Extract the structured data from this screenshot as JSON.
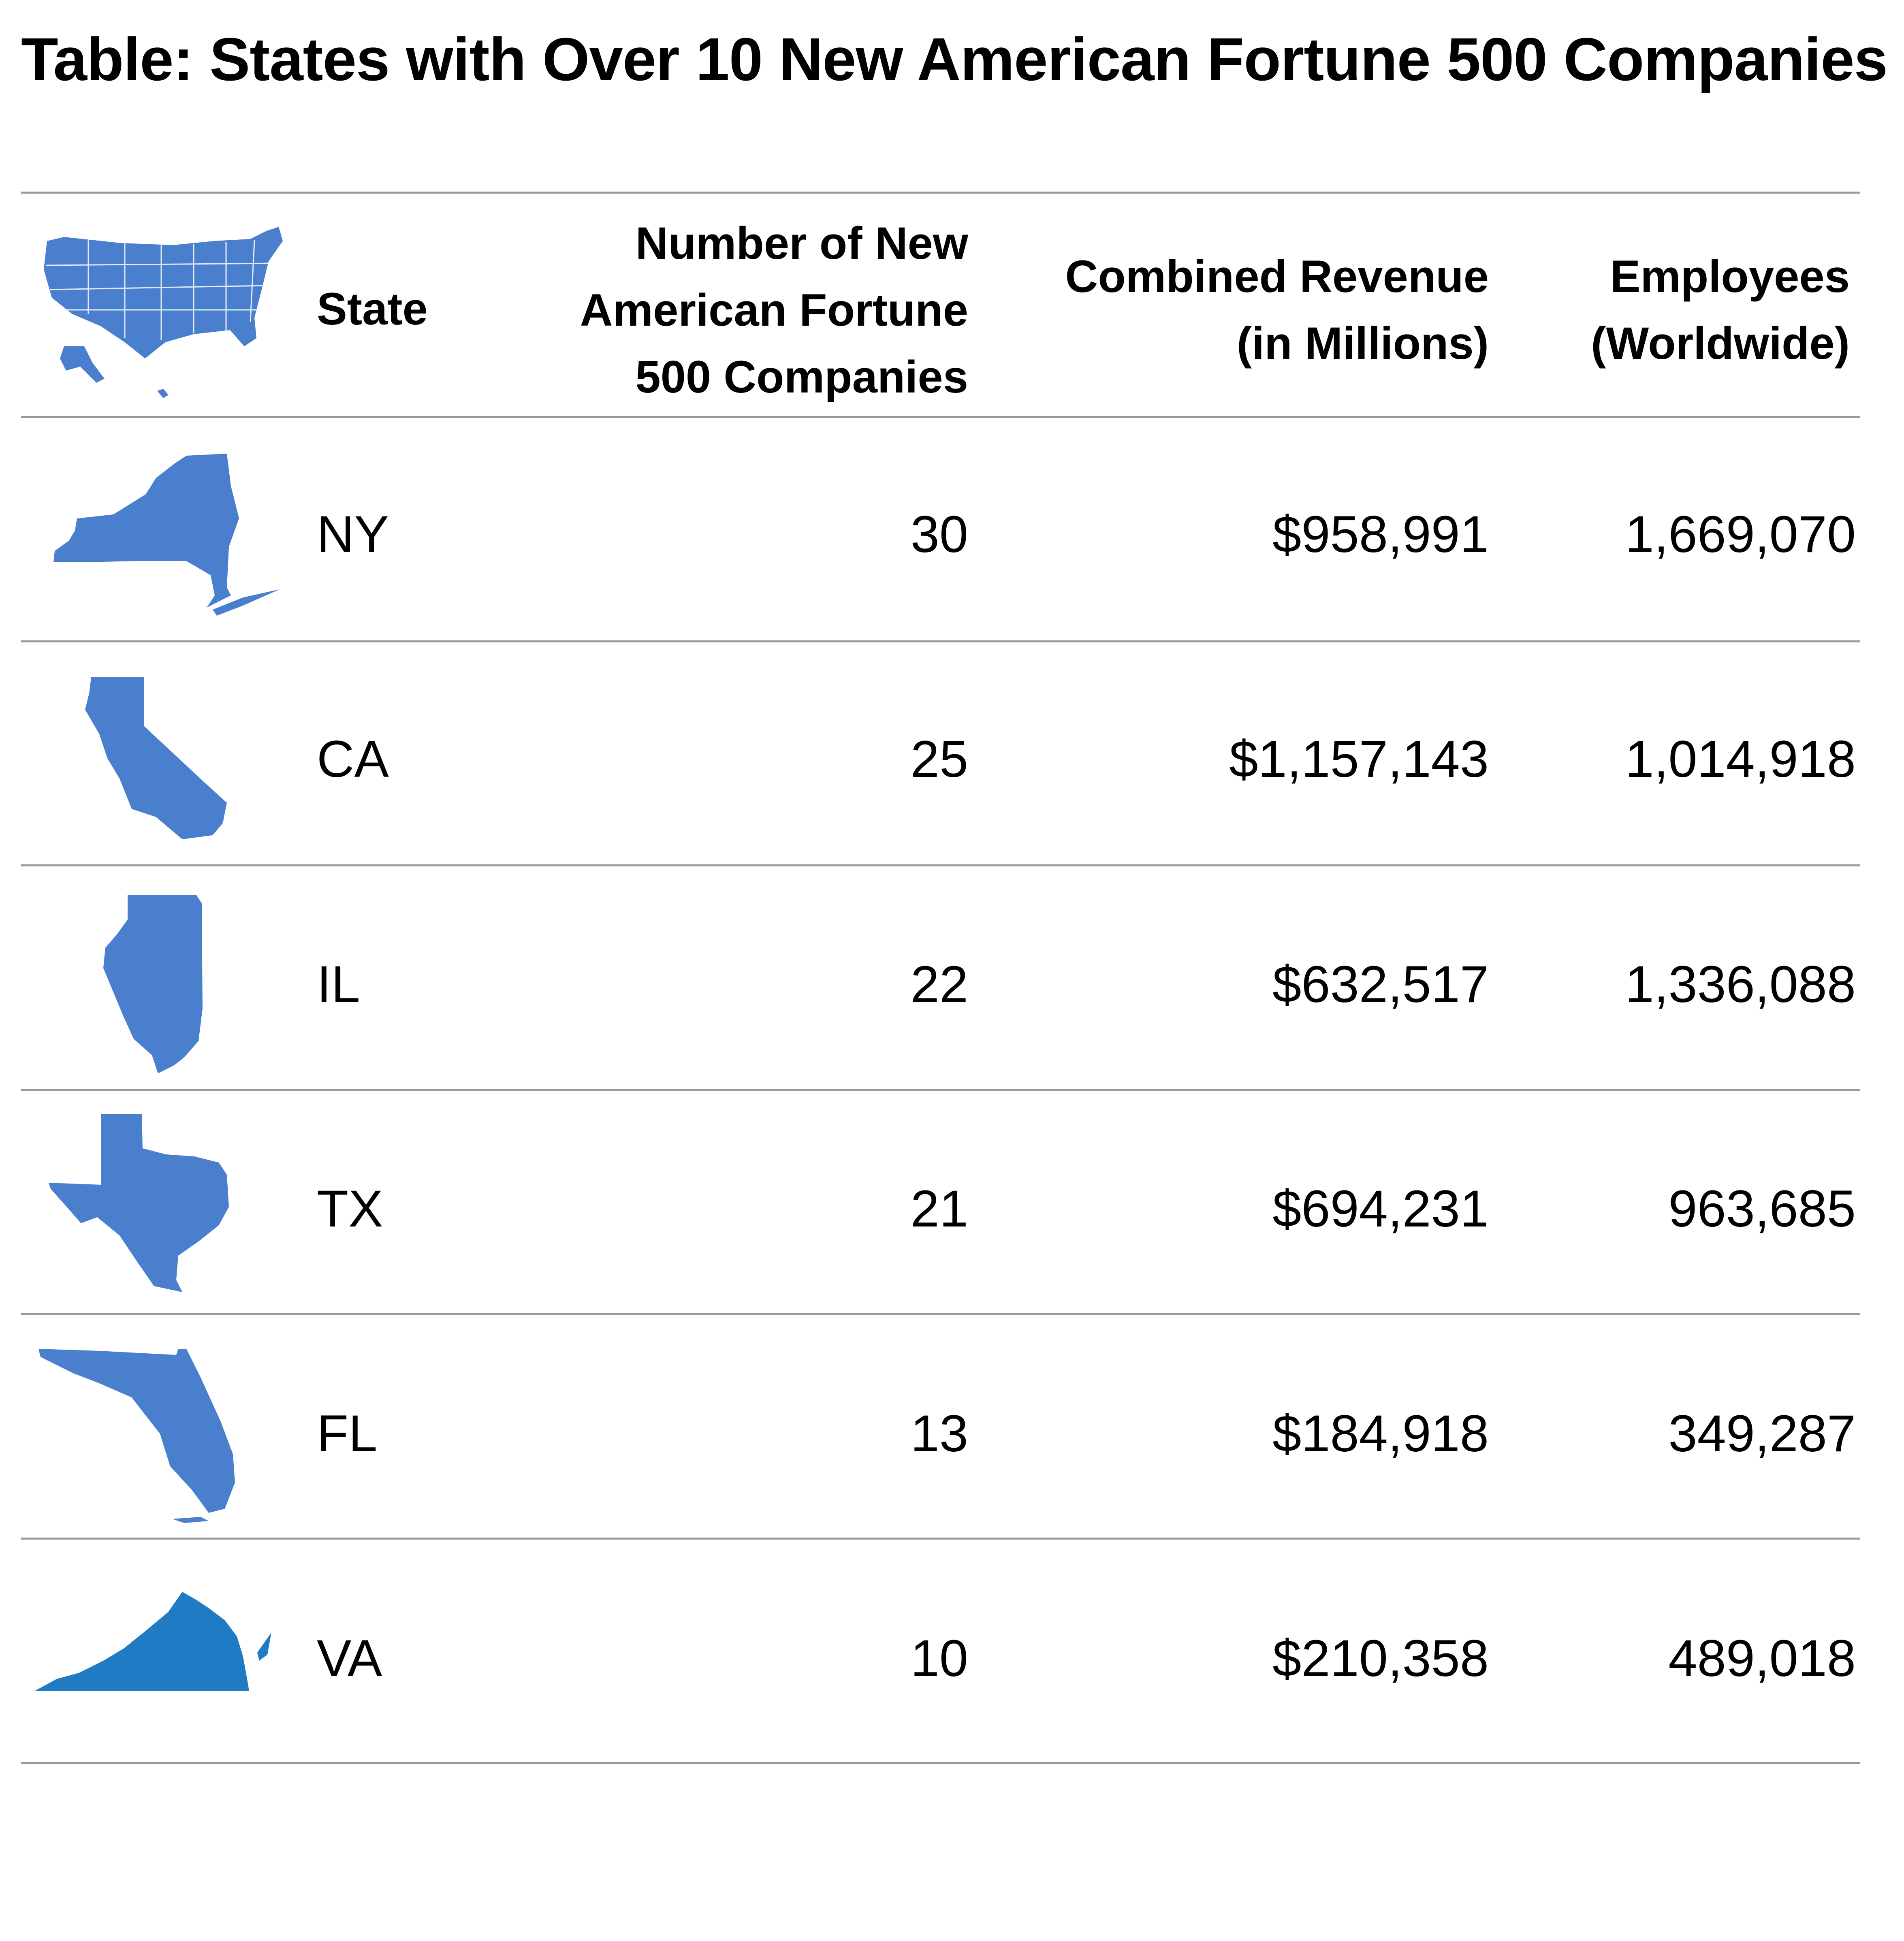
{
  "title": "Table: States with Over 10 New American Fortune 500 Companies",
  "map_color": "#4a7fce",
  "highlight_color": "#1f7bc4",
  "header": {
    "state": "State",
    "count_line1": "Number of New",
    "count_line2": "American  Fortune",
    "count_line3": "500 Companies",
    "revenue_line1": "Combined Revenue",
    "revenue_line2": "(in Millions)",
    "employees_line1": "Employees",
    "employees_line2": "(Worldwide)"
  },
  "rows": [
    {
      "state": "NY",
      "count": "30",
      "revenue": "$958,991",
      "employees": "1,669,070",
      "icon": "new-york-map-icon"
    },
    {
      "state": "CA",
      "count": "25",
      "revenue": "$1,157,143",
      "employees": "1,014,918",
      "icon": "california-map-icon"
    },
    {
      "state": "IL",
      "count": "22",
      "revenue": "$632,517",
      "employees": "1,336,088",
      "icon": "illinois-map-icon"
    },
    {
      "state": "TX",
      "count": "21",
      "revenue": "$694,231",
      "employees": "963,685",
      "icon": "texas-map-icon"
    },
    {
      "state": "FL",
      "count": "13",
      "revenue": "$184,918",
      "employees": "349,287",
      "icon": "florida-map-icon"
    },
    {
      "state": "VA",
      "count": "10",
      "revenue": "$210,358",
      "employees": "489,018",
      "icon": "virginia-map-icon"
    }
  ],
  "chart_data": {
    "type": "table",
    "title": "Table: States with Over 10 New American Fortune 500 Companies",
    "columns": [
      "State",
      "Number of New American  Fortune 500 Companies",
      "Combined Revenue (in Millions)",
      "Employees (Worldwide)"
    ],
    "rows": [
      [
        "NY",
        30,
        958991,
        1669070
      ],
      [
        "CA",
        25,
        1157143,
        1014918
      ],
      [
        "IL",
        22,
        632517,
        1336088
      ],
      [
        "TX",
        21,
        694231,
        963685
      ],
      [
        "FL",
        13,
        184918,
        349287
      ],
      [
        "VA",
        10,
        210358,
        489018
      ]
    ]
  }
}
